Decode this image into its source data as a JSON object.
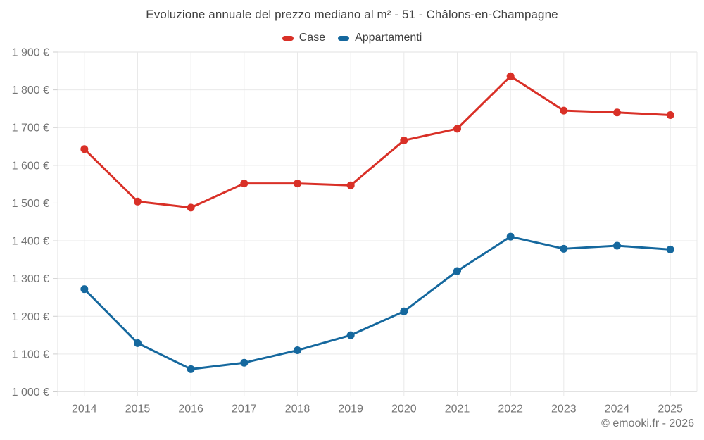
{
  "title": "Evoluzione annuale del prezzo mediano al m² - 51 - Châlons-en-Champagne",
  "footer": "© emooki.fr - 2026",
  "colors": {
    "case_red": "#d93027",
    "appartamenti_blue": "#15689e",
    "grid": "#e9e9e9",
    "axis_boundary": "#e2e2e2",
    "tick": "#cfcfcf",
    "axis_label": "#757575",
    "title_text": "#404040",
    "background": "#ffffff"
  },
  "chart_data": {
    "type": "line",
    "title": "Evoluzione annuale del prezzo mediano al m² - 51 - Châlons-en-Champagne",
    "x": [
      2014,
      2015,
      2016,
      2017,
      2018,
      2019,
      2020,
      2021,
      2022,
      2023,
      2024,
      2025
    ],
    "series": [
      {
        "name": "Case",
        "color": "#d93027",
        "values": [
          1643,
          1504,
          1488,
          1552,
          1552,
          1547,
          1666,
          1697,
          1836,
          1745,
          1740,
          1733
        ]
      },
      {
        "name": "Appartamenti",
        "color": "#15689e",
        "values": [
          1272,
          1129,
          1060,
          1077,
          1110,
          1150,
          1213,
          1320,
          1411,
          1379,
          1387,
          1377
        ]
      }
    ],
    "ylim": [
      1000,
      1900
    ],
    "ytick_step": 100,
    "y_tick_suffix": " €",
    "y_tick_labels": [
      "1 000 €",
      "1 100 €",
      "1 200 €",
      "1 300 €",
      "1 400 €",
      "1 500 €",
      "1 600 €",
      "1 700 €",
      "1 800 €",
      "1 900 €"
    ],
    "grid": true,
    "legend_position": "top",
    "xlabel": "",
    "ylabel": ""
  }
}
